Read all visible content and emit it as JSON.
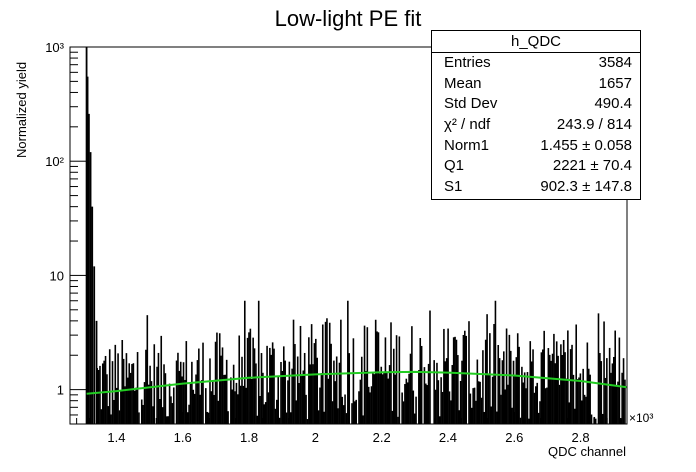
{
  "chart_data": {
    "type": "histogram",
    "title": "Low-light PE fit",
    "xlabel": "QDC channel",
    "ylabel": "Normalized yield",
    "x_multiplier": "×10³",
    "xlim": [
      1.26,
      2.94
    ],
    "ylim": [
      0.5,
      1000
    ],
    "y_scale": "log",
    "x_ticks": [
      "1.4",
      "1.6",
      "1.8",
      "2",
      "2.2",
      "2.4",
      "2.6",
      "2.8"
    ],
    "y_ticks": [
      "1",
      "10",
      "10²",
      "10³"
    ],
    "grid": false,
    "series": [
      {
        "name": "h_QDC",
        "color": "#000000",
        "style": "histogram",
        "pedestal": [
          {
            "x": 1.31,
            "y": 1000
          },
          {
            "x": 1.313,
            "y": 550
          },
          {
            "x": 1.317,
            "y": 260
          },
          {
            "x": 1.322,
            "y": 120
          },
          {
            "x": 1.327,
            "y": 40
          },
          {
            "x": 1.333,
            "y": 12
          },
          {
            "x": 1.34,
            "y": 4
          }
        ],
        "noise_range": [
          0.5,
          6
        ]
      },
      {
        "name": "fit",
        "color": "#22cc22",
        "style": "line",
        "x": [
          1.31,
          1.4,
          1.6,
          1.8,
          2.0,
          2.2,
          2.3,
          2.4,
          2.6,
          2.8,
          2.94
        ],
        "y": [
          0.92,
          0.97,
          1.13,
          1.27,
          1.36,
          1.42,
          1.43,
          1.41,
          1.33,
          1.19,
          1.05
        ]
      }
    ],
    "stats_box": {
      "name": "h_QDC",
      "rows": [
        {
          "label": "Entries",
          "value": "3584"
        },
        {
          "label": "Mean",
          "value": "1657"
        },
        {
          "label": "Std Dev",
          "value": "490.4"
        },
        {
          "label": "χ² / ndf",
          "value": "243.9 / 814"
        },
        {
          "label": "Norm1",
          "value": "1.455 ± 0.058"
        },
        {
          "label": "Q1",
          "value": "2221 ± 70.4"
        },
        {
          "label": "S1",
          "value": "902.3 ± 147.8"
        }
      ]
    }
  }
}
